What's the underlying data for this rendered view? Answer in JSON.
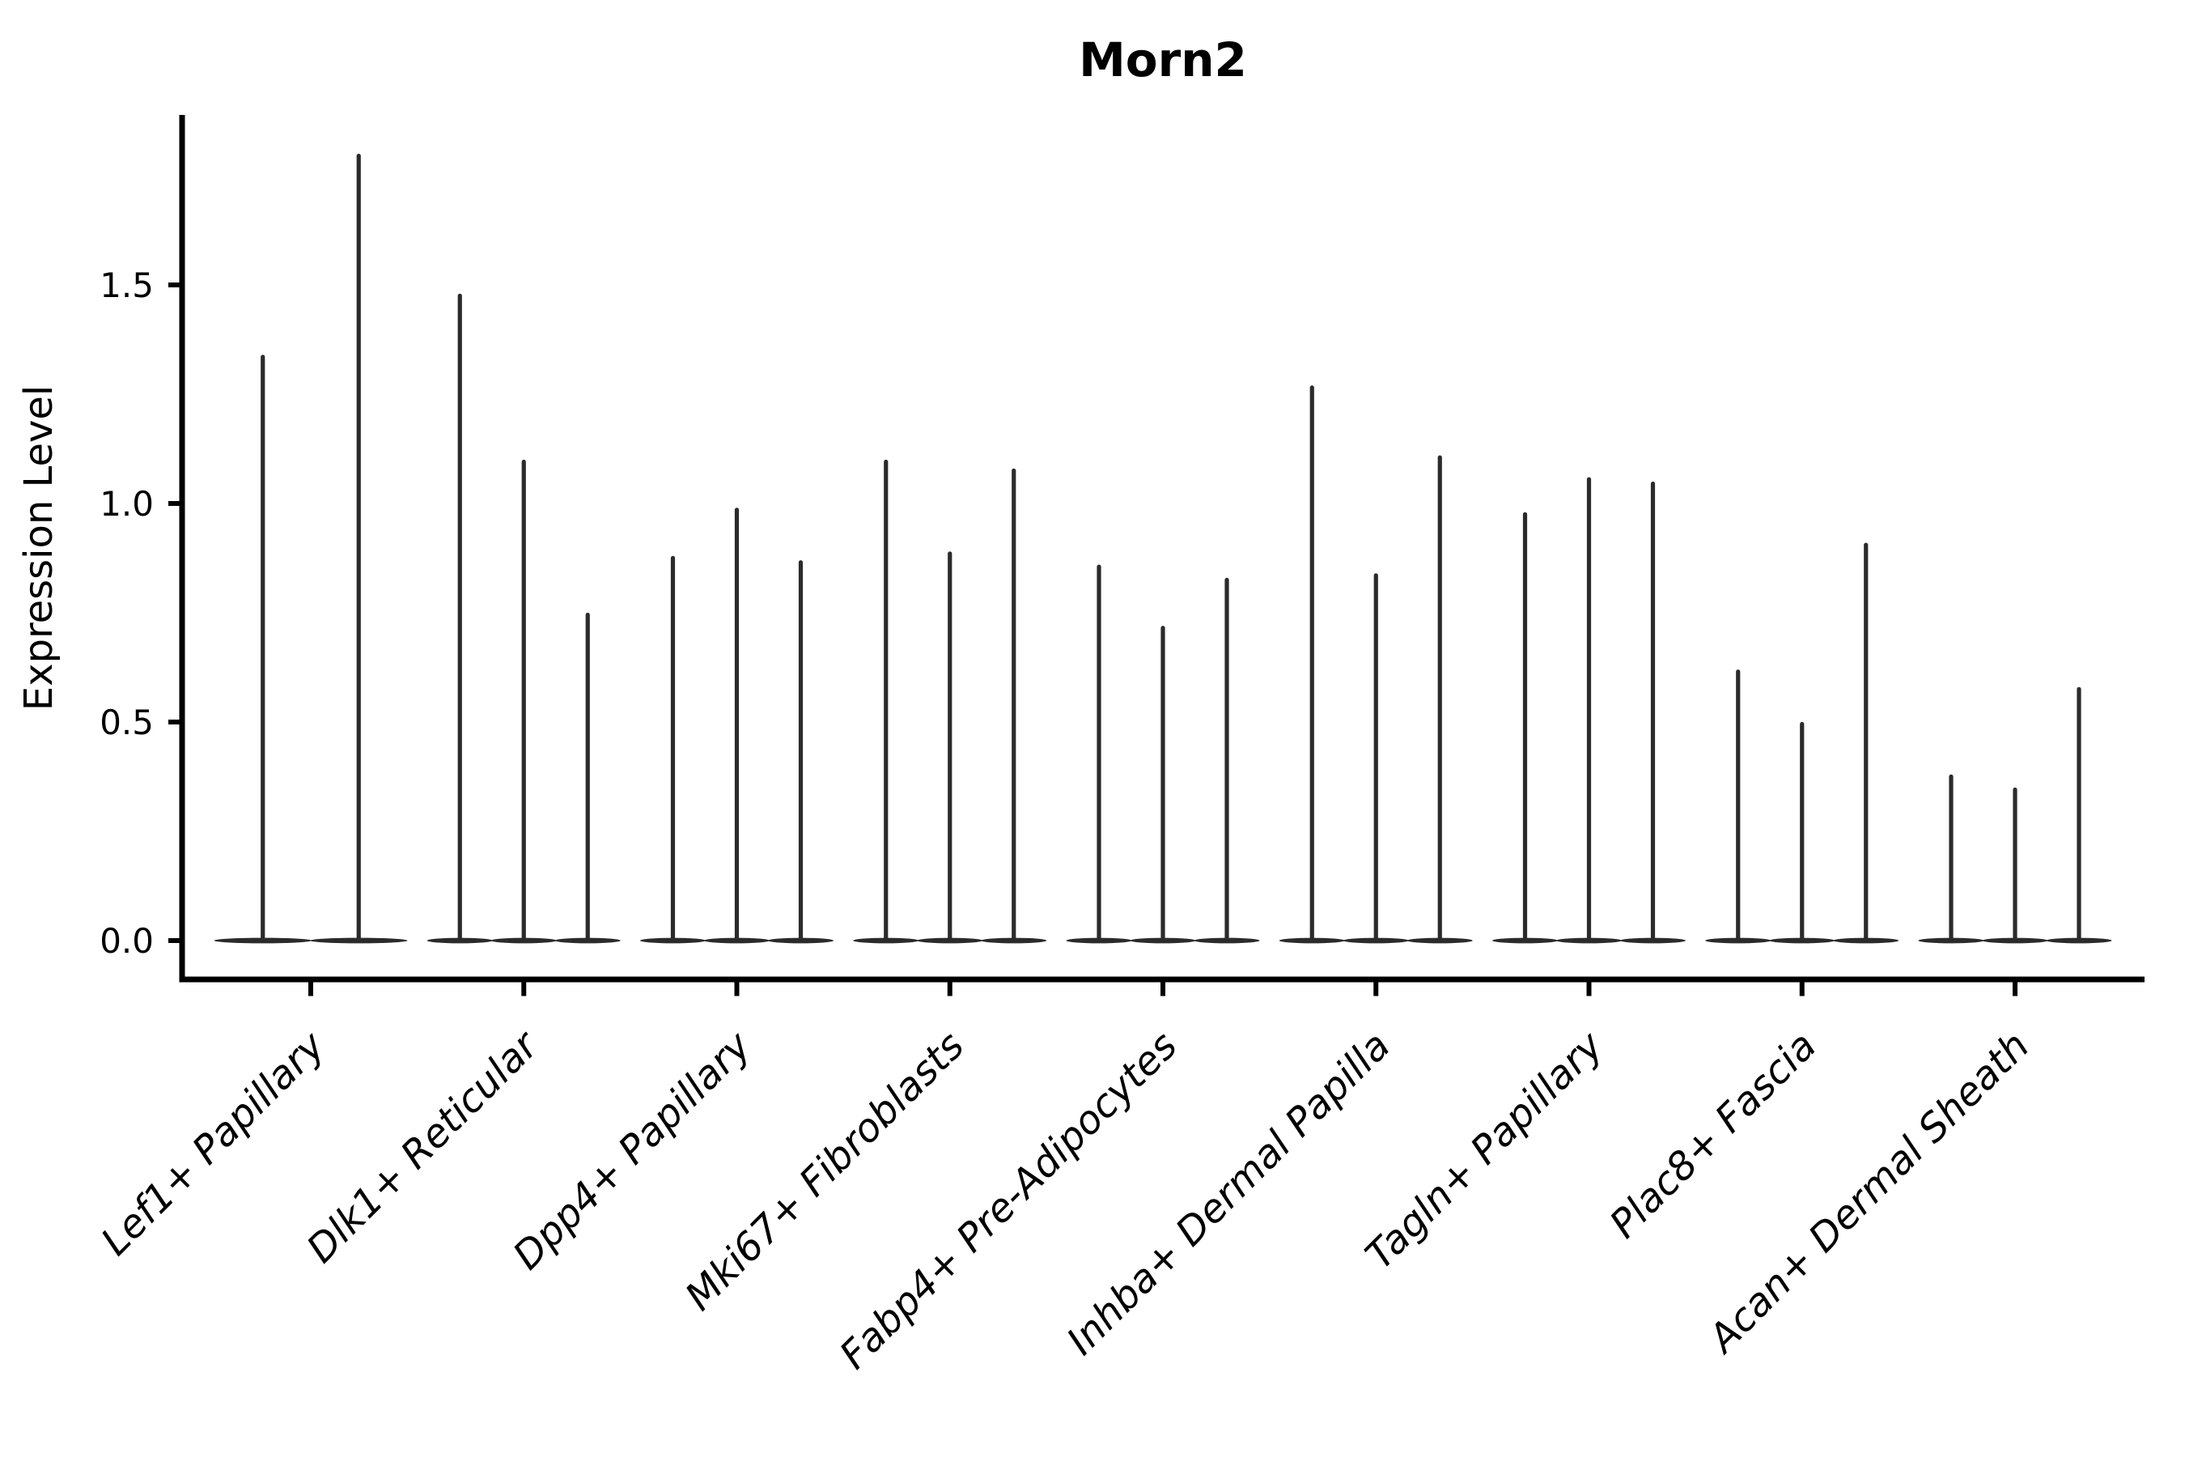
{
  "chart_data": {
    "type": "violin",
    "title": "Morn2",
    "ylabel": "Expression Level",
    "xlabel": "",
    "ylim": [
      0,
      1.88
    ],
    "y_ticks": [
      "0.0",
      "0.5",
      "1.0",
      "1.5"
    ],
    "y_tick_values": [
      0.0,
      0.5,
      1.0,
      1.5
    ],
    "grid": false,
    "legend_position": "none",
    "categories": [
      "Lef1+ Papillary",
      "Dlk1+ Reticular",
      "Dpp4+ Papillary",
      "Mki67+ Fibroblasts",
      "Fabp4+ Pre-Adipocytes",
      "Inhba+ Dermal Papilla",
      "Tagln+ Papillary",
      "Plac8+ Fascia",
      "Acan+ Dermal Sheath"
    ],
    "series": [
      {
        "category": "Lef1+ Papillary",
        "violin_maxima": [
          1.34,
          1.8
        ]
      },
      {
        "category": "Dlk1+ Reticular",
        "violin_maxima": [
          1.48,
          1.1,
          0.75
        ]
      },
      {
        "category": "Dpp4+ Papillary",
        "violin_maxima": [
          0.88,
          0.99,
          0.87
        ]
      },
      {
        "category": "Mki67+ Fibroblasts",
        "violin_maxima": [
          1.1,
          0.89,
          1.08
        ]
      },
      {
        "category": "Fabp4+ Pre-Adipocytes",
        "violin_maxima": [
          0.86,
          0.72,
          0.83
        ]
      },
      {
        "category": "Inhba+ Dermal Papilla",
        "violin_maxima": [
          1.27,
          0.84,
          1.11
        ]
      },
      {
        "category": "Tagln+ Papillary",
        "violin_maxima": [
          0.98,
          1.06,
          1.05
        ]
      },
      {
        "category": "Plac8+ Fascia",
        "violin_maxima": [
          0.62,
          0.5,
          0.91
        ]
      },
      {
        "category": "Acan+ Dermal Sheath",
        "violin_maxima": [
          0.38,
          0.35,
          0.58
        ]
      }
    ],
    "violin_style": "near-zero flat body at 0.0 with single thin spike rising to the maximum",
    "colors": {
      "ink": "#2b2b2b",
      "axis": "#000000",
      "background": "#ffffff"
    }
  }
}
